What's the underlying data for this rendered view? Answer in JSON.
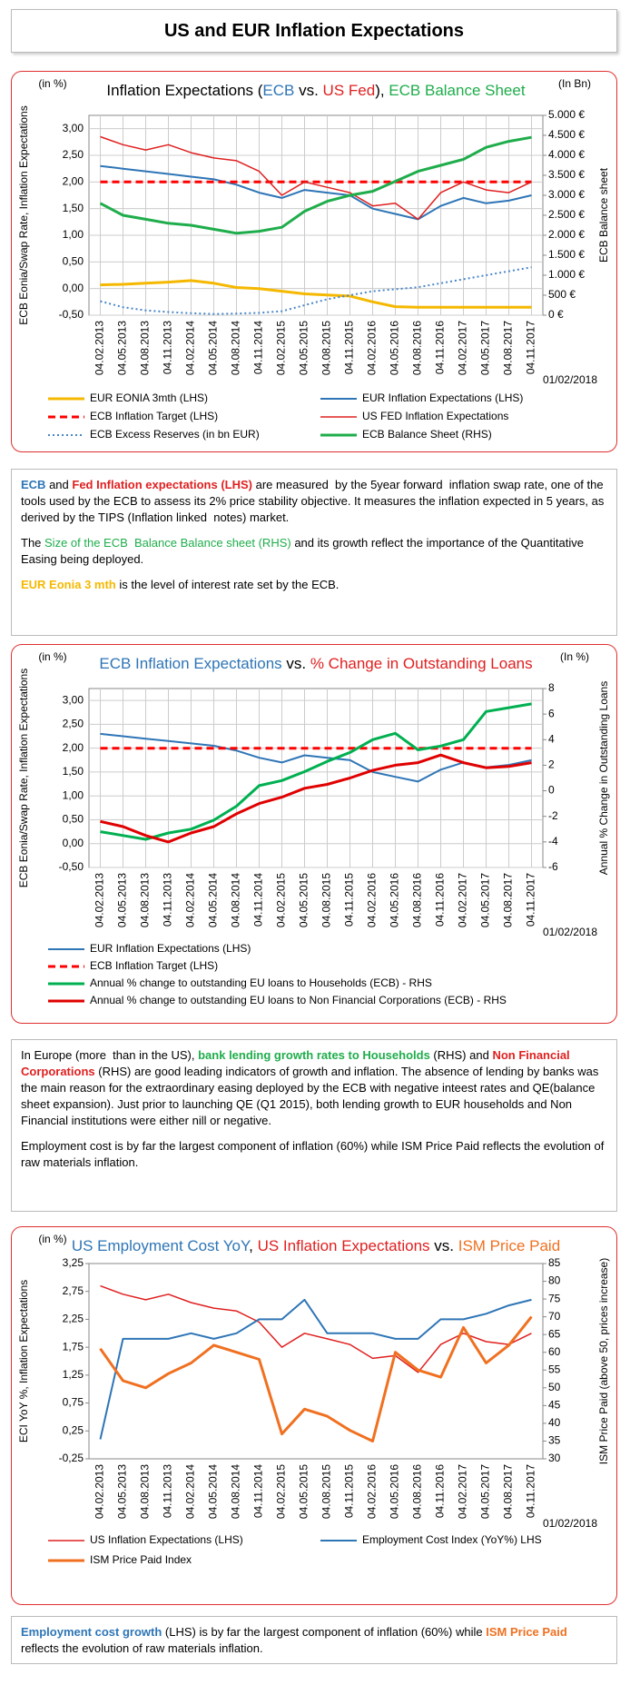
{
  "header": {
    "title": "US and EUR Inflation Expectations"
  },
  "chart_data": [
    {
      "type": "line",
      "title": [
        {
          "text": "Inflation Expectations (",
          "color": "#000000"
        },
        {
          "text": "ECB",
          "color": "#2e75b6"
        },
        {
          "text": " vs. ",
          "color": "#000000"
        },
        {
          "text": "US Fed",
          "color": "#e02020"
        },
        {
          "text": "), ",
          "color": "#000000"
        },
        {
          "text": "ECB Balance Sheet",
          "color": "#1fad4b"
        }
      ],
      "yunit": "(in %)",
      "y2unit": "(In Bn)",
      "ylabel": "ECB Eonia/Swap Rate, Inflation Expectations",
      "y2label": "ECB Balance sheet",
      "date_note": "01/02/2018",
      "categories": [
        "04.02.2013",
        "04.05.2013",
        "04.08.2013",
        "04.11.2013",
        "04.02.2014",
        "04.05.2014",
        "04.08.2014",
        "04.11.2014",
        "04.02.2015",
        "04.05.2015",
        "04.08.2015",
        "04.11.2015",
        "04.02.2016",
        "04.05.2016",
        "04.08.2016",
        "04.11.2016",
        "04.02.2017",
        "04.05.2017",
        "04.08.2017",
        "04.11.2017"
      ],
      "ylim": [
        -0.5,
        3.25
      ],
      "yticks": [
        {
          "value": -0.5,
          "label": "-0,50"
        },
        {
          "value": 0,
          "label": "0,00"
        },
        {
          "value": 0.5,
          "label": "0,50"
        },
        {
          "value": 1,
          "label": "1,00"
        },
        {
          "value": 1.5,
          "label": "1,50"
        },
        {
          "value": 2,
          "label": "2,00"
        },
        {
          "value": 2.5,
          "label": "2,50"
        },
        {
          "value": 3,
          "label": "3,00"
        }
      ],
      "y2lim": [
        0,
        5000
      ],
      "y2ticks": [
        {
          "value": 0,
          "label": "0 €"
        },
        {
          "value": 500,
          "label": "500 €"
        },
        {
          "value": 1000,
          "label": "1.000 €"
        },
        {
          "value": 1500,
          "label": "1.500 €"
        },
        {
          "value": 2000,
          "label": "2.000 €"
        },
        {
          "value": 2500,
          "label": "2.500 €"
        },
        {
          "value": 3000,
          "label": "3.000 €"
        },
        {
          "value": 3500,
          "label": "3.500 €"
        },
        {
          "value": 4000,
          "label": "4.000 €"
        },
        {
          "value": 4500,
          "label": "4.500 €"
        },
        {
          "value": 5000,
          "label": "5.000 €"
        }
      ],
      "grid": true,
      "legend_columns": 2,
      "series": [
        {
          "name": "EUR EONIA 3mth (LHS)",
          "color": "#f5b800",
          "width": 3,
          "values": [
            0.07,
            0.08,
            0.1,
            0.12,
            0.15,
            0.1,
            0.02,
            0.0,
            -0.05,
            -0.1,
            -0.12,
            -0.14,
            -0.25,
            -0.34,
            -0.35,
            -0.35,
            -0.35,
            -0.35,
            -0.35,
            -0.35
          ]
        },
        {
          "name": "EUR Inflation Expectations (LHS)",
          "color": "#2e75b6",
          "width": 2,
          "values": [
            2.3,
            2.25,
            2.2,
            2.15,
            2.1,
            2.05,
            1.95,
            1.8,
            1.7,
            1.85,
            1.8,
            1.75,
            1.5,
            1.4,
            1.3,
            1.55,
            1.7,
            1.6,
            1.65,
            1.75
          ]
        },
        {
          "name": "ECB Inflation Target  (LHS)",
          "color": "#ff0000",
          "width": 3,
          "dash": "8 5",
          "values": [
            2,
            2,
            2,
            2,
            2,
            2,
            2,
            2,
            2,
            2,
            2,
            2,
            2,
            2,
            2,
            2,
            2,
            2,
            2,
            2
          ]
        },
        {
          "name": "US FED Inflation Expectations",
          "color": "#e02020",
          "width": 1.5,
          "values": [
            2.85,
            2.7,
            2.6,
            2.7,
            2.55,
            2.45,
            2.4,
            2.2,
            1.75,
            2.0,
            1.9,
            1.8,
            1.55,
            1.6,
            1.3,
            1.8,
            2.0,
            1.85,
            1.8,
            2.0
          ]
        },
        {
          "name": "ECB Excess Reserves (in bn EUR)",
          "color": "#4a86c8",
          "width": 2,
          "dash": "2 3",
          "axis": "y2",
          "values": [
            350,
            200,
            120,
            80,
            50,
            30,
            40,
            60,
            100,
            250,
            400,
            500,
            600,
            650,
            700,
            800,
            900,
            1000,
            1100,
            1200
          ]
        },
        {
          "name": "ECB Balance Sheet (RHS)",
          "color": "#1fad4b",
          "width": 3,
          "axis": "y2",
          "values": [
            2800,
            2500,
            2400,
            2300,
            2250,
            2150,
            2050,
            2100,
            2200,
            2600,
            2850,
            3000,
            3100,
            3350,
            3600,
            3750,
            3900,
            4200,
            4350,
            4450
          ]
        }
      ]
    },
    {
      "type": "line",
      "title": [
        {
          "text": "ECB Inflation Expectations",
          "color": "#2e75b6"
        },
        {
          "text": " vs. ",
          "color": "#000000"
        },
        {
          "text": "% Change in Outstanding Loans",
          "color": "#e02020"
        }
      ],
      "yunit": "(in %)",
      "y2unit": "(In %)",
      "ylabel": "ECB Eonia/Swap Rate, Inflation Expectations",
      "y2label": "Annual % Change in Outstanding Loans",
      "date_note": "01/02/2018",
      "categories": [
        "04.02.2013",
        "04.05.2013",
        "04.08.2013",
        "04.11.2013",
        "04.02.2014",
        "04.05.2014",
        "04.08.2014",
        "04.11.2014",
        "04.02.2015",
        "04.05.2015",
        "04.08.2015",
        "04.11.2015",
        "04.02.2016",
        "04.05.2016",
        "04.08.2016",
        "04.11.2016",
        "04.02.2017",
        "04.05.2017",
        "04.08.2017",
        "04.11.2017"
      ],
      "ylim": [
        -0.5,
        3.25
      ],
      "yticks": [
        {
          "value": -0.5,
          "label": "-0,50"
        },
        {
          "value": 0,
          "label": "0,00"
        },
        {
          "value": 0.5,
          "label": "0,50"
        },
        {
          "value": 1,
          "label": "1,00"
        },
        {
          "value": 1.5,
          "label": "1,50"
        },
        {
          "value": 2,
          "label": "2,00"
        },
        {
          "value": 2.5,
          "label": "2,50"
        },
        {
          "value": 3,
          "label": "3,00"
        }
      ],
      "y2lim": [
        -6,
        8
      ],
      "y2ticks": [
        -6,
        -4,
        -2,
        0,
        2,
        4,
        6,
        8
      ],
      "grid": true,
      "legend_columns": 1,
      "series": [
        {
          "name": "EUR Inflation Expectations (LHS)",
          "color": "#2e75b6",
          "width": 2,
          "values": [
            2.3,
            2.25,
            2.2,
            2.15,
            2.1,
            2.05,
            1.95,
            1.8,
            1.7,
            1.85,
            1.8,
            1.75,
            1.5,
            1.4,
            1.3,
            1.55,
            1.7,
            1.6,
            1.65,
            1.75
          ]
        },
        {
          "name": "ECB Inflation Target  (LHS)",
          "color": "#ff0000",
          "width": 3,
          "dash": "8 5",
          "values": [
            2,
            2,
            2,
            2,
            2,
            2,
            2,
            2,
            2,
            2,
            2,
            2,
            2,
            2,
            2,
            2,
            2,
            2,
            2,
            2
          ]
        },
        {
          "name": "Annual % change to outstanding EU loans to Households (ECB) - RHS",
          "color": "#00b050",
          "width": 3,
          "axis": "y2",
          "values": [
            -3.2,
            -3.5,
            -3.8,
            -3.3,
            -3.0,
            -2.3,
            -1.2,
            0.4,
            0.8,
            1.5,
            2.3,
            3.0,
            4.0,
            4.5,
            3.2,
            3.5,
            4.0,
            6.2,
            6.5,
            6.8
          ]
        },
        {
          "name": "Annual % change to outstanding EU loans to Non Financial Corporations (ECB) - RHS",
          "color": "#e00000",
          "width": 3,
          "axis": "y2",
          "values": [
            -2.4,
            -2.8,
            -3.5,
            -4.0,
            -3.3,
            -2.8,
            -1.8,
            -1.0,
            -0.5,
            0.2,
            0.5,
            1.0,
            1.6,
            2.0,
            2.2,
            2.8,
            2.2,
            1.8,
            1.9,
            2.2
          ]
        }
      ]
    },
    {
      "type": "line",
      "title": [
        {
          "text": "US Employment Cost YoY",
          "color": "#2e75b6"
        },
        {
          "text": ", ",
          "color": "#000000"
        },
        {
          "text": "US Inflation Expectations",
          "color": "#e02020"
        },
        {
          "text": " vs. ",
          "color": "#000000"
        },
        {
          "text": "ISM Price Paid",
          "color": "#f07020"
        }
      ],
      "yunit": "(in %)",
      "ylabel": "ECI YoY %, Inflation Expectations",
      "y2label": "ISM Price Paid (above 50, prices increase)",
      "date_note": "01/02/2018",
      "categories": [
        "04.02.2013",
        "04.05.2013",
        "04.08.2013",
        "04.11.2013",
        "04.02.2014",
        "04.05.2014",
        "04.08.2014",
        "04.11.2014",
        "04.02.2015",
        "04.05.2015",
        "04.08.2015",
        "04.11.2015",
        "04.02.2016",
        "04.05.2016",
        "04.08.2016",
        "04.11.2016",
        "04.02.2017",
        "04.05.2017",
        "04.08.2017",
        "04.11.2017"
      ],
      "ylim": [
        -0.25,
        3.25
      ],
      "yticks": [
        {
          "value": -0.25,
          "label": "-0,25"
        },
        {
          "value": 0.25,
          "label": "0,25"
        },
        {
          "value": 0.75,
          "label": "0,75"
        },
        {
          "value": 1.25,
          "label": "1,25"
        },
        {
          "value": 1.75,
          "label": "1,75"
        },
        {
          "value": 2.25,
          "label": "2,25"
        },
        {
          "value": 2.75,
          "label": "2,75"
        },
        {
          "value": 3.25,
          "label": "3,25"
        }
      ],
      "y2lim": [
        30,
        85
      ],
      "y2ticks": [
        30,
        35,
        40,
        45,
        50,
        55,
        60,
        65,
        70,
        75,
        80,
        85
      ],
      "grid": false,
      "legend_columns": 2,
      "series": [
        {
          "name": "US Inflation Expectations (LHS)",
          "color": "#e02020",
          "width": 1.5,
          "values": [
            2.85,
            2.7,
            2.6,
            2.7,
            2.55,
            2.45,
            2.4,
            2.2,
            1.75,
            2.0,
            1.9,
            1.8,
            1.55,
            1.6,
            1.3,
            1.8,
            2.0,
            1.85,
            1.8,
            2.0
          ]
        },
        {
          "name": "Employment Cost Index (YoY%) LHS",
          "color": "#2e75b6",
          "width": 2,
          "values": [
            0.1,
            1.9,
            1.9,
            1.9,
            2.0,
            1.9,
            2.0,
            2.25,
            2.25,
            2.6,
            2.0,
            2.0,
            2.0,
            1.9,
            1.9,
            2.25,
            2.25,
            2.35,
            2.5,
            2.6
          ]
        },
        {
          "name": "ISM Price Paid Index",
          "color": "#f07020",
          "width": 3,
          "axis": "y2",
          "values": [
            61,
            52,
            50,
            54,
            57,
            62,
            60,
            58,
            37,
            44,
            42,
            38,
            35,
            60,
            55,
            53,
            67,
            57,
            62,
            70
          ]
        }
      ]
    }
  ],
  "notes": [
    [
      [
        {
          "text": "ECB",
          "color": "#2e75b6",
          "bold": true
        },
        {
          "text": " and ",
          "color": "#000000"
        },
        {
          "text": "Fed Inflation expectations (LHS)",
          "color": "#e02020",
          "bold": true
        },
        {
          "text": " are measured  by the 5year forward  inflation swap rate, one of the tools used by the ECB to assess its 2% price stability objective. It measures the inflation expected in 5 years, as derived by the TIPS (Inflation linked  notes) market.",
          "color": "#000000"
        }
      ],
      [
        {
          "text": "The ",
          "color": "#000000"
        },
        {
          "text": "Size of the ECB  Balance Balance sheet (RHS)",
          "color": "#1fad4b"
        },
        {
          "text": " and its growth reflect the importance of the Quantitative Easing being deployed.",
          "color": "#000000"
        }
      ],
      [
        {
          "text": "EUR Eonia 3 mth",
          "color": "#f5b800",
          "bold": true
        },
        {
          "text": " is the level of interest rate set by the ECB.",
          "color": "#000000"
        }
      ]
    ],
    [
      [
        {
          "text": "In Europe (more  than in the US), ",
          "color": "#000000"
        },
        {
          "text": "bank lending growth rates to Households",
          "color": "#1fad4b",
          "bold": true
        },
        {
          "text": " (RHS) and ",
          "color": "#000000"
        },
        {
          "text": "Non Financial Corporations",
          "color": "#e02020",
          "bold": true
        },
        {
          "text": " (RHS) are good leading indicators of growth and inflation. The absence of lending by banks was the main reason for the extraordinary easing deployed by the ECB with negative inteest rates and QE(balance sheet expansion). Just prior to launching QE (Q1 2015), both lending growth to EUR households and Non Financial institutions were either nill or negative.",
          "color": "#000000"
        }
      ],
      [
        {
          "text": "Employment cost is by far the largest component of inflation (60%) while ISM Price Paid reflects the evolution of raw materials inflation.",
          "color": "#000000"
        }
      ]
    ],
    [
      [
        {
          "text": "Employment cost growth",
          "color": "#2e75b6",
          "bold": true
        },
        {
          "text": " (LHS) is by far the largest component of inflation (60%) while ",
          "color": "#000000"
        },
        {
          "text": "ISM Price Paid",
          "color": "#f07020",
          "bold": true
        },
        {
          "text": " reflects the evolution of raw materials inflation.",
          "color": "#000000"
        }
      ]
    ]
  ]
}
